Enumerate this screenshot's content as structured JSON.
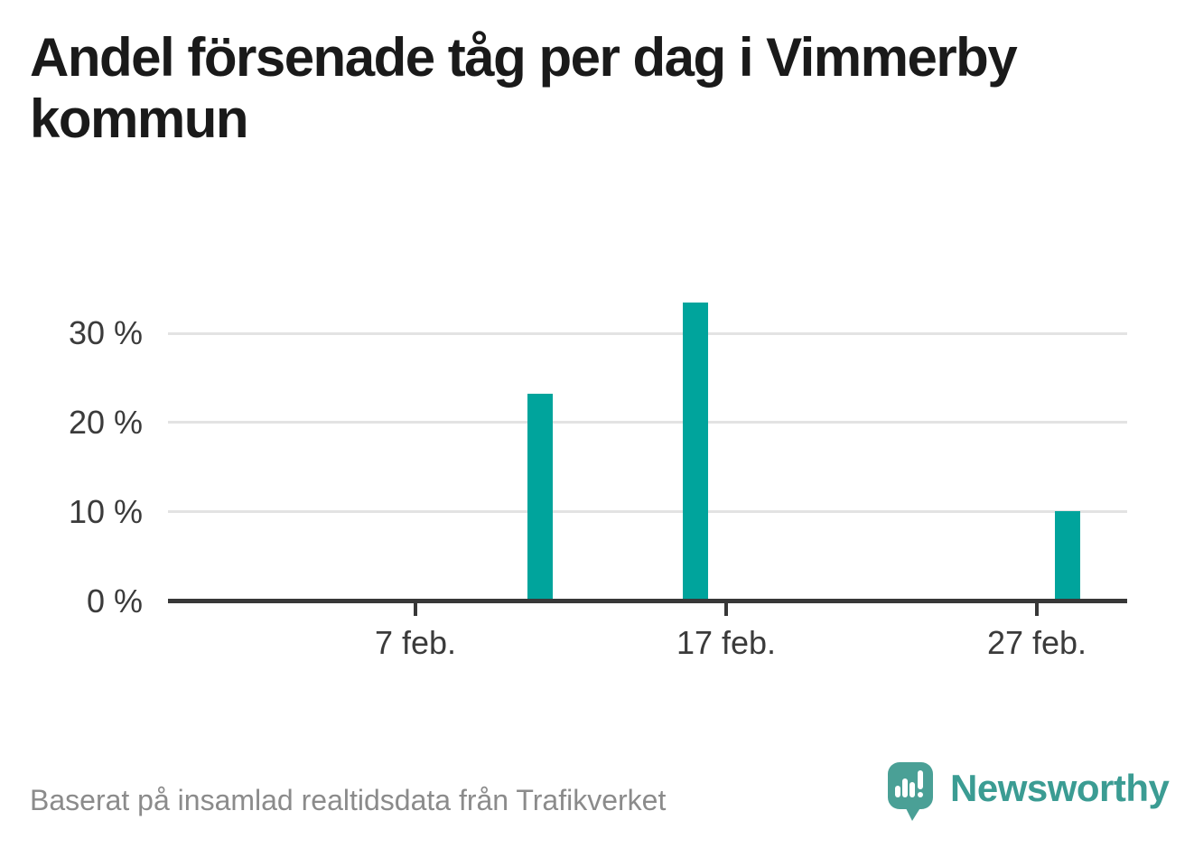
{
  "title": {
    "full": "Andel försenade tåg per dag i Vimmerby kommun",
    "line1": "Andel försenade tåg per dag i Vimmerby",
    "line2": "kommun"
  },
  "footer": {
    "source_note": "Baserat på insamlad realtidsdata från Trafikverket"
  },
  "logo": {
    "wordmark": "Newsworthy",
    "mark": "speech-bubble-with-bar-chart-and-exclamation"
  },
  "colors": {
    "bar": "#00a49c",
    "title_text": "#1a1a1a",
    "axis_text": "#3b3b3b",
    "axis_line": "#383838",
    "gridline": "#e3e3e3",
    "footer_text": "#8b8b8b",
    "logo_bubble": "#4aa096",
    "logo_text": "#3b9c93",
    "background": "#ffffff"
  },
  "chart_data": {
    "type": "bar",
    "title": "Andel försenade tåg per dag i Vimmerby kommun",
    "unit": "%",
    "month": "feb.",
    "points": [
      {
        "day": 11,
        "label": "11 feb.",
        "value": 23.2
      },
      {
        "day": 16,
        "label": "16 feb.",
        "value": 33.5
      },
      {
        "day": 28,
        "label": "28 feb.",
        "value": 10.1
      }
    ],
    "x_ticks": [
      {
        "day": 7,
        "label": "7 feb."
      },
      {
        "day": 17,
        "label": "17 feb."
      },
      {
        "day": 27,
        "label": "27 feb."
      }
    ],
    "y_ticks": [
      {
        "value": 0,
        "label": "0 %"
      },
      {
        "value": 10,
        "label": "10 %"
      },
      {
        "value": 20,
        "label": "20 %"
      },
      {
        "value": 30,
        "label": "30 %"
      }
    ],
    "ylim": [
      0,
      35
    ],
    "grid": "horizontal-only",
    "legend": "none",
    "source": "Trafikverket"
  }
}
